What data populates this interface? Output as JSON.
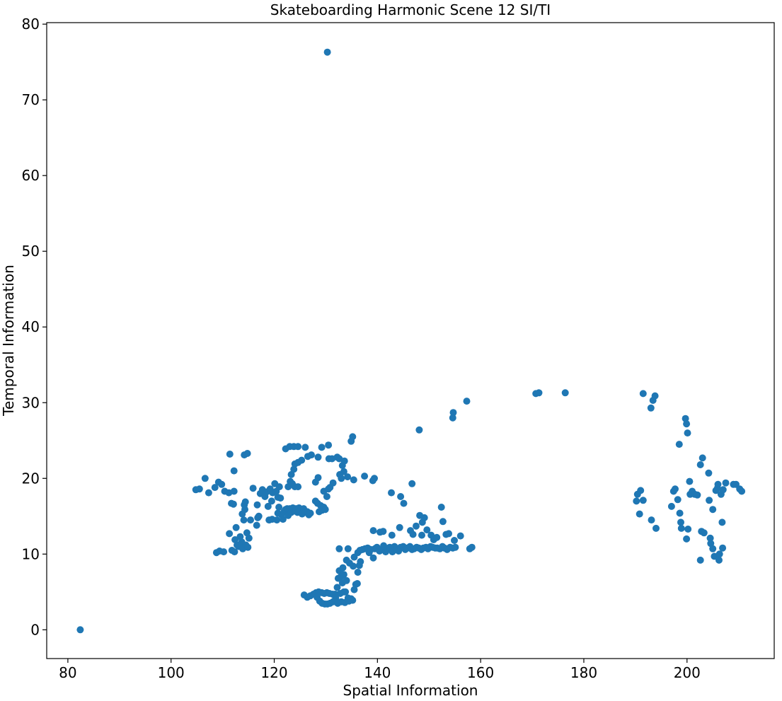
{
  "chart_data": {
    "type": "scatter",
    "title": "Skateboarding Harmonic Scene 12 SI/TI",
    "xlabel": "Spatial Information",
    "ylabel": "Temporal Information",
    "xlim": [
      75.9,
      216.9
    ],
    "ylim": [
      -3.8,
      80.2
    ],
    "xticks": [
      80,
      100,
      120,
      140,
      160,
      180,
      200
    ],
    "yticks": [
      0,
      10,
      20,
      30,
      40,
      50,
      60,
      70,
      80
    ],
    "grid": false,
    "marker_color": "#1f77b4",
    "series": [
      {
        "points": [
          [
            82.4,
            0.0
          ],
          [
            130.3,
            76.3
          ],
          [
            104.8,
            18.5
          ],
          [
            105.5,
            18.6
          ],
          [
            106.6,
            20.0
          ],
          [
            107.3,
            18.1
          ],
          [
            108.5,
            18.8
          ],
          [
            109.2,
            19.5
          ],
          [
            109.8,
            19.2
          ],
          [
            110.4,
            18.3
          ],
          [
            111.2,
            18.1
          ],
          [
            112.2,
            18.3
          ],
          [
            111.4,
            23.2
          ],
          [
            112.2,
            21.0
          ],
          [
            111.7,
            16.7
          ],
          [
            112.1,
            16.6
          ],
          [
            114.2,
            23.1
          ],
          [
            114.8,
            23.3
          ],
          [
            108.8,
            10.2
          ],
          [
            109.4,
            10.4
          ],
          [
            110.2,
            10.3
          ],
          [
            111.3,
            12.7
          ],
          [
            111.8,
            10.5
          ],
          [
            112.3,
            10.3
          ],
          [
            112.6,
            13.5
          ],
          [
            112.4,
            11.9
          ],
          [
            112.8,
            11.2
          ],
          [
            113.1,
            11.0
          ],
          [
            113.4,
            12.3
          ],
          [
            113.7,
            11.6
          ],
          [
            113.9,
            10.7
          ],
          [
            114.1,
            14.5
          ],
          [
            114.3,
            15.9
          ],
          [
            114.5,
            11.2
          ],
          [
            114.7,
            12.8
          ],
          [
            114.9,
            10.9
          ],
          [
            115.1,
            12.1
          ],
          [
            115.4,
            14.5
          ],
          [
            113.8,
            15.3
          ],
          [
            114.2,
            16.5
          ],
          [
            114.4,
            16.9
          ],
          [
            115.9,
            18.7
          ],
          [
            116.7,
            16.5
          ],
          [
            116.8,
            14.8
          ],
          [
            116.6,
            13.8
          ],
          [
            117.0,
            15.0
          ],
          [
            117.3,
            18.0
          ],
          [
            117.7,
            18.5
          ],
          [
            118.2,
            17.6
          ],
          [
            118.5,
            18.2
          ],
          [
            118.8,
            16.3
          ],
          [
            119.2,
            18.6
          ],
          [
            119.5,
            17.0
          ],
          [
            119.7,
            18.1
          ],
          [
            120.1,
            19.3
          ],
          [
            120.4,
            18.3
          ],
          [
            120.7,
            17.5
          ],
          [
            121.0,
            18.9
          ],
          [
            121.2,
            17.4
          ],
          [
            119.0,
            14.5
          ],
          [
            119.6,
            14.6
          ],
          [
            120.5,
            14.5
          ],
          [
            120.7,
            15.4
          ],
          [
            120.9,
            16.2
          ],
          [
            121.4,
            15.2
          ],
          [
            121.7,
            14.6
          ],
          [
            121.9,
            15.6
          ],
          [
            122.2,
            15.9
          ],
          [
            122.5,
            16.0
          ],
          [
            122.7,
            15.1
          ],
          [
            123.0,
            16.0
          ],
          [
            123.3,
            15.5
          ],
          [
            123.6,
            16.1
          ],
          [
            123.9,
            15.7
          ],
          [
            124.2,
            16.0
          ],
          [
            124.5,
            15.5
          ],
          [
            124.8,
            16.1
          ],
          [
            125.1,
            15.9
          ],
          [
            125.4,
            15.3
          ],
          [
            125.7,
            16.0
          ],
          [
            126.0,
            15.5
          ],
          [
            126.4,
            15.6
          ],
          [
            126.7,
            15.2
          ],
          [
            127.0,
            15.4
          ],
          [
            128.0,
            17.0
          ],
          [
            128.4,
            16.7
          ],
          [
            128.7,
            15.6
          ],
          [
            129.0,
            16.4
          ],
          [
            129.3,
            15.8
          ],
          [
            129.6,
            16.2
          ],
          [
            129.9,
            15.9
          ],
          [
            122.2,
            23.9
          ],
          [
            123.0,
            24.2
          ],
          [
            123.8,
            24.2
          ],
          [
            124.6,
            24.2
          ],
          [
            125.3,
            22.4
          ],
          [
            126.0,
            24.1
          ],
          [
            126.5,
            22.9
          ],
          [
            127.2,
            23.1
          ],
          [
            123.3,
            20.5
          ],
          [
            123.8,
            21.2
          ],
          [
            124.0,
            21.9
          ],
          [
            124.6,
            22.1
          ],
          [
            122.7,
            18.9
          ],
          [
            123.1,
            19.6
          ],
          [
            123.5,
            19.3
          ],
          [
            124.0,
            18.9
          ],
          [
            124.6,
            18.9
          ],
          [
            128.0,
            19.5
          ],
          [
            128.5,
            20.1
          ],
          [
            128.5,
            22.8
          ],
          [
            129.2,
            24.1
          ],
          [
            130.5,
            24.4
          ],
          [
            129.6,
            18.3
          ],
          [
            130.2,
            17.6
          ],
          [
            130.5,
            18.6
          ],
          [
            130.8,
            18.8
          ],
          [
            130.6,
            22.6
          ],
          [
            131.2,
            22.6
          ],
          [
            131.4,
            19.4
          ],
          [
            132.2,
            22.8
          ],
          [
            132.6,
            22.6
          ],
          [
            132.7,
            20.5
          ],
          [
            133.0,
            20.0
          ],
          [
            133.2,
            21.7
          ],
          [
            133.5,
            20.9
          ],
          [
            133.6,
            22.3
          ],
          [
            134.2,
            20.2
          ],
          [
            134.9,
            24.9
          ],
          [
            135.2,
            25.5
          ],
          [
            135.4,
            19.8
          ],
          [
            131.8,
            4.7
          ],
          [
            132.2,
            5.6
          ],
          [
            132.4,
            6.8
          ],
          [
            132.6,
            7.8
          ],
          [
            132.9,
            7.0
          ],
          [
            133.2,
            6.2
          ],
          [
            133.3,
            8.2
          ],
          [
            133.5,
            7.3
          ],
          [
            133.8,
            5.0
          ],
          [
            134.0,
            6.5
          ],
          [
            134.3,
            4.2
          ],
          [
            134.6,
            8.8
          ],
          [
            134.9,
            4.1
          ],
          [
            135.2,
            3.9
          ],
          [
            135.5,
            5.3
          ],
          [
            135.8,
            6.0
          ],
          [
            136.1,
            6.1
          ],
          [
            136.2,
            7.6
          ],
          [
            136.5,
            8.5
          ],
          [
            136.7,
            9.0
          ],
          [
            135.3,
            8.4
          ],
          [
            134.0,
            9.2
          ],
          [
            133.5,
            5.0
          ],
          [
            132.8,
            4.8
          ],
          [
            133.0,
            3.7
          ],
          [
            133.7,
            3.6
          ],
          [
            134.5,
            3.8
          ],
          [
            125.8,
            4.6
          ],
          [
            126.4,
            4.3
          ],
          [
            127.0,
            4.5
          ],
          [
            127.6,
            4.7
          ],
          [
            128.1,
            4.9
          ],
          [
            128.6,
            5.0
          ],
          [
            129.2,
            4.9
          ],
          [
            129.7,
            4.8
          ],
          [
            130.2,
            4.9
          ],
          [
            130.7,
            4.8
          ],
          [
            131.3,
            4.7
          ],
          [
            128.3,
            4.3
          ],
          [
            128.8,
            3.8
          ],
          [
            129.3,
            3.5
          ],
          [
            129.8,
            3.4
          ],
          [
            130.3,
            3.4
          ],
          [
            130.8,
            3.5
          ],
          [
            131.4,
            3.7
          ],
          [
            131.9,
            4.2
          ],
          [
            132.3,
            3.5
          ],
          [
            132.6,
            10.7
          ],
          [
            134.3,
            10.7
          ],
          [
            135.5,
            9.6
          ],
          [
            136.2,
            10.2
          ],
          [
            136.6,
            10.5
          ],
          [
            137.1,
            10.6
          ],
          [
            137.6,
            10.7
          ],
          [
            138.1,
            10.8
          ],
          [
            138.4,
            10.2
          ],
          [
            138.7,
            10.6
          ],
          [
            139.2,
            9.5
          ],
          [
            139.5,
            10.7
          ],
          [
            139.9,
            10.9
          ],
          [
            140.4,
            10.4
          ],
          [
            140.8,
            10.6
          ],
          [
            141.2,
            11.1
          ],
          [
            141.6,
            10.3
          ],
          [
            142.0,
            10.7
          ],
          [
            142.4,
            10.9
          ],
          [
            142.9,
            10.3
          ],
          [
            143.3,
            11.0
          ],
          [
            143.7,
            10.7
          ],
          [
            144.1,
            10.4
          ],
          [
            144.5,
            10.9
          ],
          [
            145.0,
            11.0
          ],
          [
            145.4,
            10.6
          ],
          [
            145.8,
            10.8
          ],
          [
            146.3,
            11.0
          ],
          [
            146.7,
            10.6
          ],
          [
            147.1,
            10.7
          ],
          [
            147.6,
            10.9
          ],
          [
            148.0,
            10.8
          ],
          [
            148.5,
            10.6
          ],
          [
            148.9,
            10.8
          ],
          [
            149.4,
            10.9
          ],
          [
            149.8,
            10.7
          ],
          [
            150.3,
            11.0
          ],
          [
            150.7,
            10.9
          ],
          [
            151.2,
            10.8
          ],
          [
            151.6,
            10.8
          ],
          [
            152.1,
            10.7
          ],
          [
            152.6,
            11.0
          ],
          [
            153.0,
            10.8
          ],
          [
            153.5,
            10.6
          ],
          [
            154.1,
            10.9
          ],
          [
            154.6,
            10.8
          ],
          [
            155.1,
            10.9
          ],
          [
            157.9,
            10.7
          ],
          [
            158.3,
            10.9
          ],
          [
            137.5,
            20.3
          ],
          [
            139.1,
            19.7
          ],
          [
            139.4,
            20.0
          ],
          [
            142.7,
            18.1
          ],
          [
            144.5,
            17.6
          ],
          [
            145.1,
            16.7
          ],
          [
            146.7,
            19.3
          ],
          [
            148.1,
            26.4
          ],
          [
            154.7,
            28.7
          ],
          [
            154.6,
            28.0
          ],
          [
            157.3,
            30.2
          ],
          [
            139.2,
            13.1
          ],
          [
            140.5,
            12.9
          ],
          [
            141.1,
            13.0
          ],
          [
            142.8,
            12.5
          ],
          [
            144.3,
            13.5
          ],
          [
            146.4,
            13.1
          ],
          [
            146.9,
            12.6
          ],
          [
            147.5,
            13.7
          ],
          [
            148.2,
            15.1
          ],
          [
            148.7,
            14.2
          ],
          [
            149.1,
            14.8
          ],
          [
            148.6,
            12.5
          ],
          [
            149.6,
            13.2
          ],
          [
            150.4,
            12.5
          ],
          [
            150.9,
            11.9
          ],
          [
            151.5,
            12.2
          ],
          [
            152.4,
            16.2
          ],
          [
            152.7,
            14.3
          ],
          [
            153.3,
            12.6
          ],
          [
            153.8,
            12.7
          ],
          [
            154.9,
            11.8
          ],
          [
            156.1,
            12.4
          ],
          [
            170.7,
            31.2
          ],
          [
            171.3,
            31.3
          ],
          [
            176.4,
            31.3
          ],
          [
            191.5,
            31.2
          ],
          [
            193.0,
            29.3
          ],
          [
            193.4,
            30.3
          ],
          [
            193.8,
            30.9
          ],
          [
            199.7,
            27.9
          ],
          [
            199.9,
            27.2
          ],
          [
            200.1,
            26.0
          ],
          [
            198.5,
            24.5
          ],
          [
            203.0,
            22.7
          ],
          [
            202.6,
            21.8
          ],
          [
            204.2,
            20.7
          ],
          [
            190.2,
            17.0
          ],
          [
            190.4,
            17.9
          ],
          [
            191.0,
            18.4
          ],
          [
            190.8,
            15.3
          ],
          [
            191.5,
            17.1
          ],
          [
            193.1,
            14.5
          ],
          [
            194.0,
            13.4
          ],
          [
            197.0,
            16.3
          ],
          [
            197.4,
            18.3
          ],
          [
            197.7,
            18.6
          ],
          [
            198.2,
            17.2
          ],
          [
            198.6,
            15.4
          ],
          [
            198.8,
            14.2
          ],
          [
            198.9,
            13.4
          ],
          [
            199.9,
            12.0
          ],
          [
            200.2,
            13.3
          ],
          [
            200.5,
            19.6
          ],
          [
            200.6,
            17.9
          ],
          [
            201.0,
            18.3
          ],
          [
            201.5,
            17.9
          ],
          [
            202.0,
            17.8
          ],
          [
            202.6,
            9.2
          ],
          [
            202.8,
            13.0
          ],
          [
            203.3,
            12.8
          ],
          [
            204.3,
            17.1
          ],
          [
            204.5,
            12.1
          ],
          [
            204.6,
            11.4
          ],
          [
            205.0,
            10.7
          ],
          [
            205.0,
            15.9
          ],
          [
            205.3,
            9.7
          ],
          [
            205.6,
            18.4
          ],
          [
            205.9,
            18.7
          ],
          [
            206.0,
            19.2
          ],
          [
            206.2,
            9.2
          ],
          [
            206.3,
            10.0
          ],
          [
            206.6,
            17.9
          ],
          [
            206.8,
            14.2
          ],
          [
            206.9,
            10.8
          ],
          [
            207.0,
            18.5
          ],
          [
            207.5,
            19.4
          ],
          [
            209.0,
            19.2
          ],
          [
            209.5,
            19.2
          ],
          [
            210.2,
            18.6
          ],
          [
            210.6,
            18.3
          ]
        ]
      }
    ]
  }
}
